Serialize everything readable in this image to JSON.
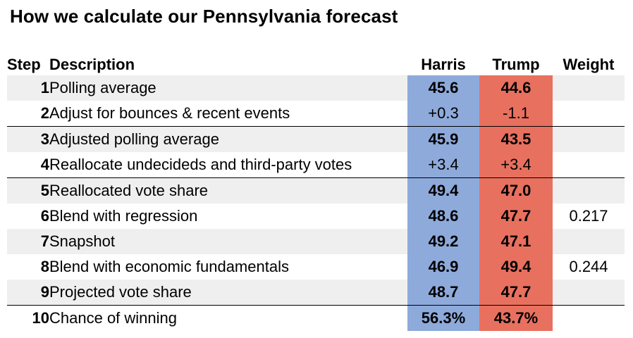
{
  "title": "How we calculate our Pennsylvania forecast",
  "headers": {
    "step": "Step",
    "description": "Description",
    "harris": "Harris",
    "trump": "Trump",
    "weight": "Weight"
  },
  "colors": {
    "harris": "#8eaadb",
    "trump": "#e8705f",
    "shade": "#efefef"
  },
  "rows": [
    {
      "step": "1",
      "description": "Polling average",
      "harris": "45.6",
      "trump": "44.6",
      "weight": ""
    },
    {
      "step": "2",
      "description": "Adjust for bounces & recent events",
      "harris": "+0.3",
      "trump": "-1.1",
      "weight": ""
    },
    {
      "step": "3",
      "description": "Adjusted polling average",
      "harris": "45.9",
      "trump": "43.5",
      "weight": ""
    },
    {
      "step": "4",
      "description": "Reallocate undecideds and third-party votes",
      "harris": "+3.4",
      "trump": "+3.4",
      "weight": ""
    },
    {
      "step": "5",
      "description": "Reallocated vote share",
      "harris": "49.4",
      "trump": "47.0",
      "weight": ""
    },
    {
      "step": "6",
      "description": "Blend with regression",
      "harris": "48.6",
      "trump": "47.7",
      "weight": "0.217"
    },
    {
      "step": "7",
      "description": "Snapshot",
      "harris": "49.2",
      "trump": "47.1",
      "weight": ""
    },
    {
      "step": "8",
      "description": "Blend with economic fundamentals",
      "harris": "46.9",
      "trump": "49.4",
      "weight": "0.244"
    },
    {
      "step": "9",
      "description": "Projected vote share",
      "harris": "48.7",
      "trump": "47.7",
      "weight": ""
    },
    {
      "step": "10",
      "description": "Chance of winning",
      "harris": "56.3%",
      "trump": "43.7%",
      "weight": ""
    }
  ]
}
